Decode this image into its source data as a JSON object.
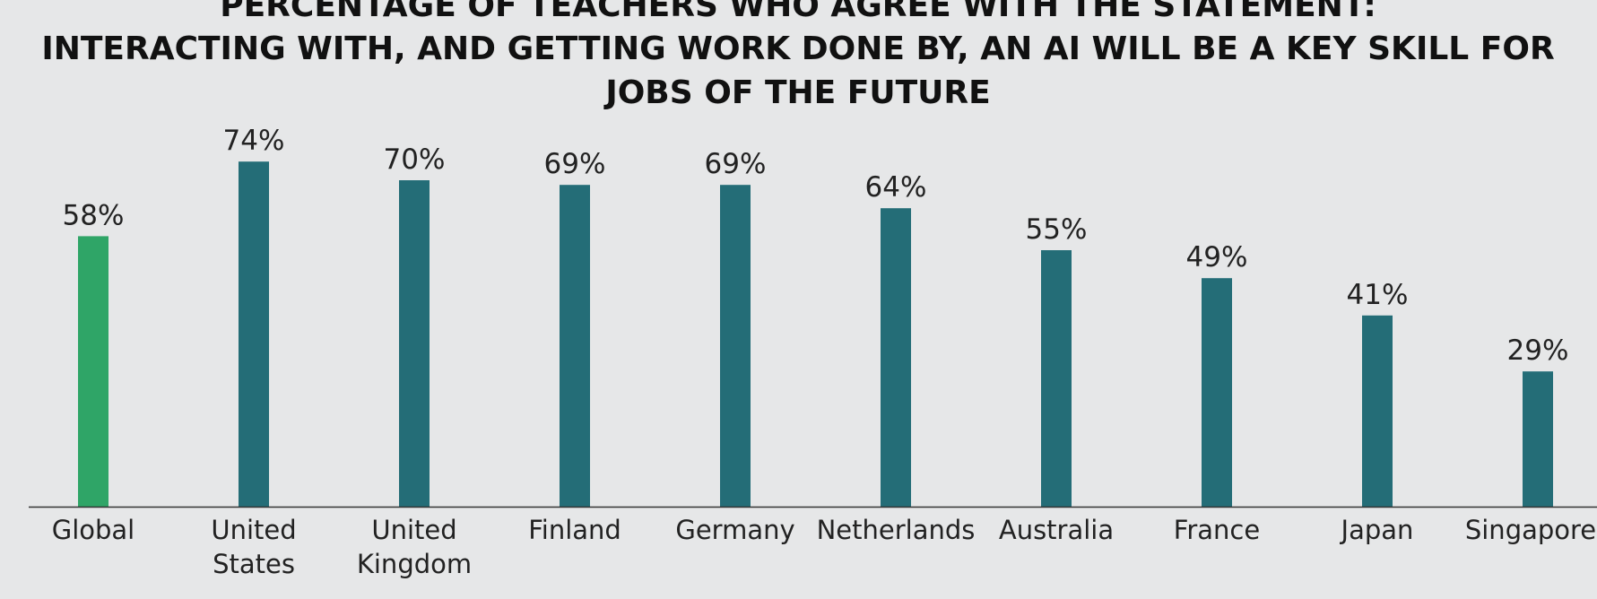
{
  "chart_data": {
    "type": "bar",
    "title": "PERCENTAGE OF TEACHERS WHO AGREE WITH THE STATEMENT: INTERACTING WITH, AND GETTING WORK DONE BY, AN AI WILL BE A KEY SKILL FOR JOBS OF THE FUTURE",
    "title_lines": [
      "PERCENTAGE OF TEACHERS WHO AGREE WITH THE STATEMENT:",
      "INTERACTING WITH, AND GETTING WORK DONE BY, AN AI WILL BE A KEY SKILL FOR",
      "JOBS OF THE FUTURE"
    ],
    "categories": [
      "Global",
      "United States",
      "United Kingdom",
      "Finland",
      "Germany",
      "Netherlands",
      "Australia",
      "France",
      "Japan",
      "Singapore"
    ],
    "category_lines": [
      [
        "Global"
      ],
      [
        "United",
        "States"
      ],
      [
        "United",
        "Kingdom"
      ],
      [
        "Finland"
      ],
      [
        "Germany"
      ],
      [
        "Netherlands"
      ],
      [
        "Australia"
      ],
      [
        "France"
      ],
      [
        "Japan"
      ],
      [
        "Singapore"
      ]
    ],
    "values": [
      58,
      74,
      70,
      69,
      69,
      64,
      55,
      49,
      41,
      29
    ],
    "value_labels": [
      "58%",
      "74%",
      "70%",
      "69%",
      "69%",
      "64%",
      "55%",
      "49%",
      "41%",
      "29%"
    ],
    "unit": "%",
    "xlabel": "",
    "ylabel": "",
    "ylim": [
      0,
      100
    ],
    "grid": false,
    "legend": "none",
    "colors": {
      "background": "#e6e7e8",
      "highlight_bar": "#2fa567",
      "bar": "#246d77",
      "axis": "#333333",
      "text": "#222222"
    },
    "highlight_index": 0
  }
}
